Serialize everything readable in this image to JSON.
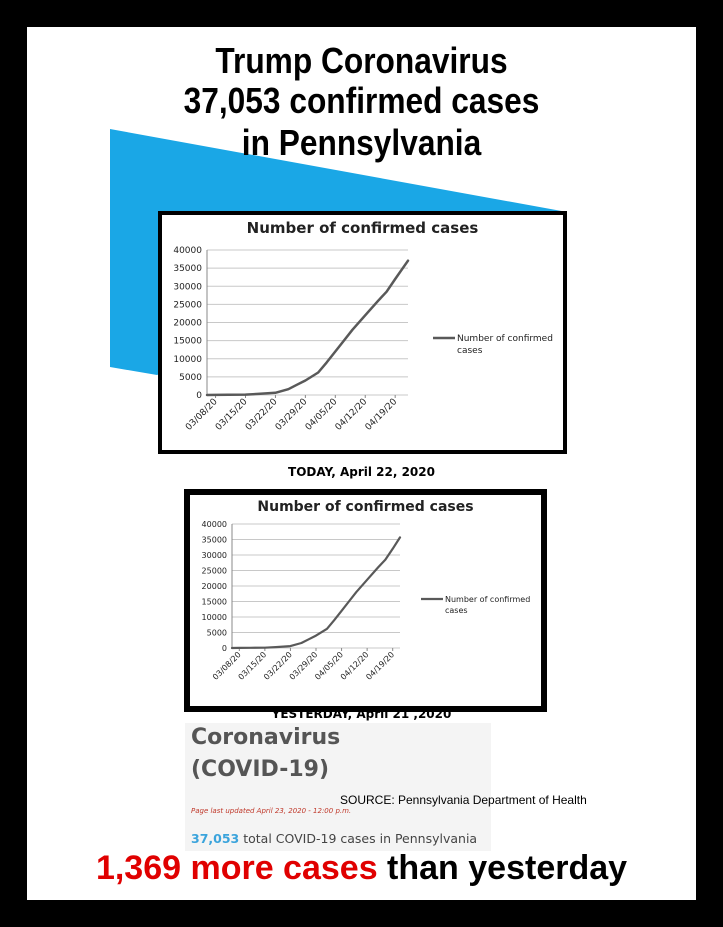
{
  "headline": {
    "line1": "Trump Coronavirus",
    "line2": "37,053 confirmed cases",
    "line3": "in Pennsylvania"
  },
  "colors": {
    "wedge": "#1aa7e6",
    "line": "#595959",
    "red": "#e00000",
    "blue_number": "#3ba4dc"
  },
  "chart_data": [
    {
      "type": "line",
      "title": "Number of confirmed cases",
      "legend": "Number of confirmed cases",
      "legend_position": "right",
      "y_ticks": [
        "40000",
        "35000",
        "30000",
        "25000",
        "20000",
        "15000",
        "10000",
        "5000",
        "0"
      ],
      "ylim": [
        0,
        40000
      ],
      "x_tick_labels": [
        "03/08/20",
        "03/15/20",
        "03/22/20",
        "03/29/20",
        "04/05/20",
        "04/12/20",
        "04/19/20"
      ],
      "x": [
        "03/06/20",
        "03/08/20",
        "03/11/20",
        "03/15/20",
        "03/18/20",
        "03/22/20",
        "03/25/20",
        "03/27/20",
        "03/29/20",
        "04/01/20",
        "04/03/20",
        "04/05/20",
        "04/07/20",
        "04/09/20",
        "04/12/20",
        "04/15/20",
        "04/17/20",
        "04/19/20",
        "04/22/20"
      ],
      "values": [
        0,
        20,
        80,
        100,
        300,
        600,
        1600,
        2800,
        4000,
        6200,
        9000,
        12000,
        15000,
        18000,
        22000,
        26000,
        28500,
        32000,
        37053
      ],
      "grid": true,
      "caption": "TODAY, April 22, 2020"
    },
    {
      "type": "line",
      "title": "Number of confirmed cases",
      "legend": "Number of confirmed cases",
      "legend_position": "right",
      "y_ticks": [
        "40000",
        "35000",
        "30000",
        "25000",
        "20000",
        "15000",
        "10000",
        "5000",
        "0"
      ],
      "ylim": [
        0,
        40000
      ],
      "x_tick_labels": [
        "03/08/20",
        "03/15/20",
        "03/22/20",
        "03/29/20",
        "04/05/20",
        "04/12/20",
        "04/19/20"
      ],
      "x": [
        "03/06/20",
        "03/08/20",
        "03/11/20",
        "03/15/20",
        "03/18/20",
        "03/22/20",
        "03/25/20",
        "03/27/20",
        "03/29/20",
        "04/01/20",
        "04/03/20",
        "04/05/20",
        "04/07/20",
        "04/09/20",
        "04/12/20",
        "04/15/20",
        "04/17/20",
        "04/19/20",
        "04/21/20"
      ],
      "values": [
        0,
        20,
        80,
        100,
        300,
        600,
        1600,
        2800,
        4000,
        6200,
        9000,
        12000,
        15000,
        18000,
        22000,
        26000,
        28500,
        32000,
        35684
      ],
      "grid": true,
      "caption": "YESTERDAY, April 21 ,2020"
    }
  ],
  "health": {
    "title1": "Coronavirus",
    "title2": "(COVID-19)",
    "updated": "Page last updated April 23, 2020 - 12:00 p.m.",
    "total_number": "37,053",
    "total_text": " total COVID-19 cases in Pennsylvania"
  },
  "source": "SOURCE: Pennsylvania Department of Health",
  "bottom": {
    "red": "1,369 more cases",
    "black": " than yesterday"
  }
}
